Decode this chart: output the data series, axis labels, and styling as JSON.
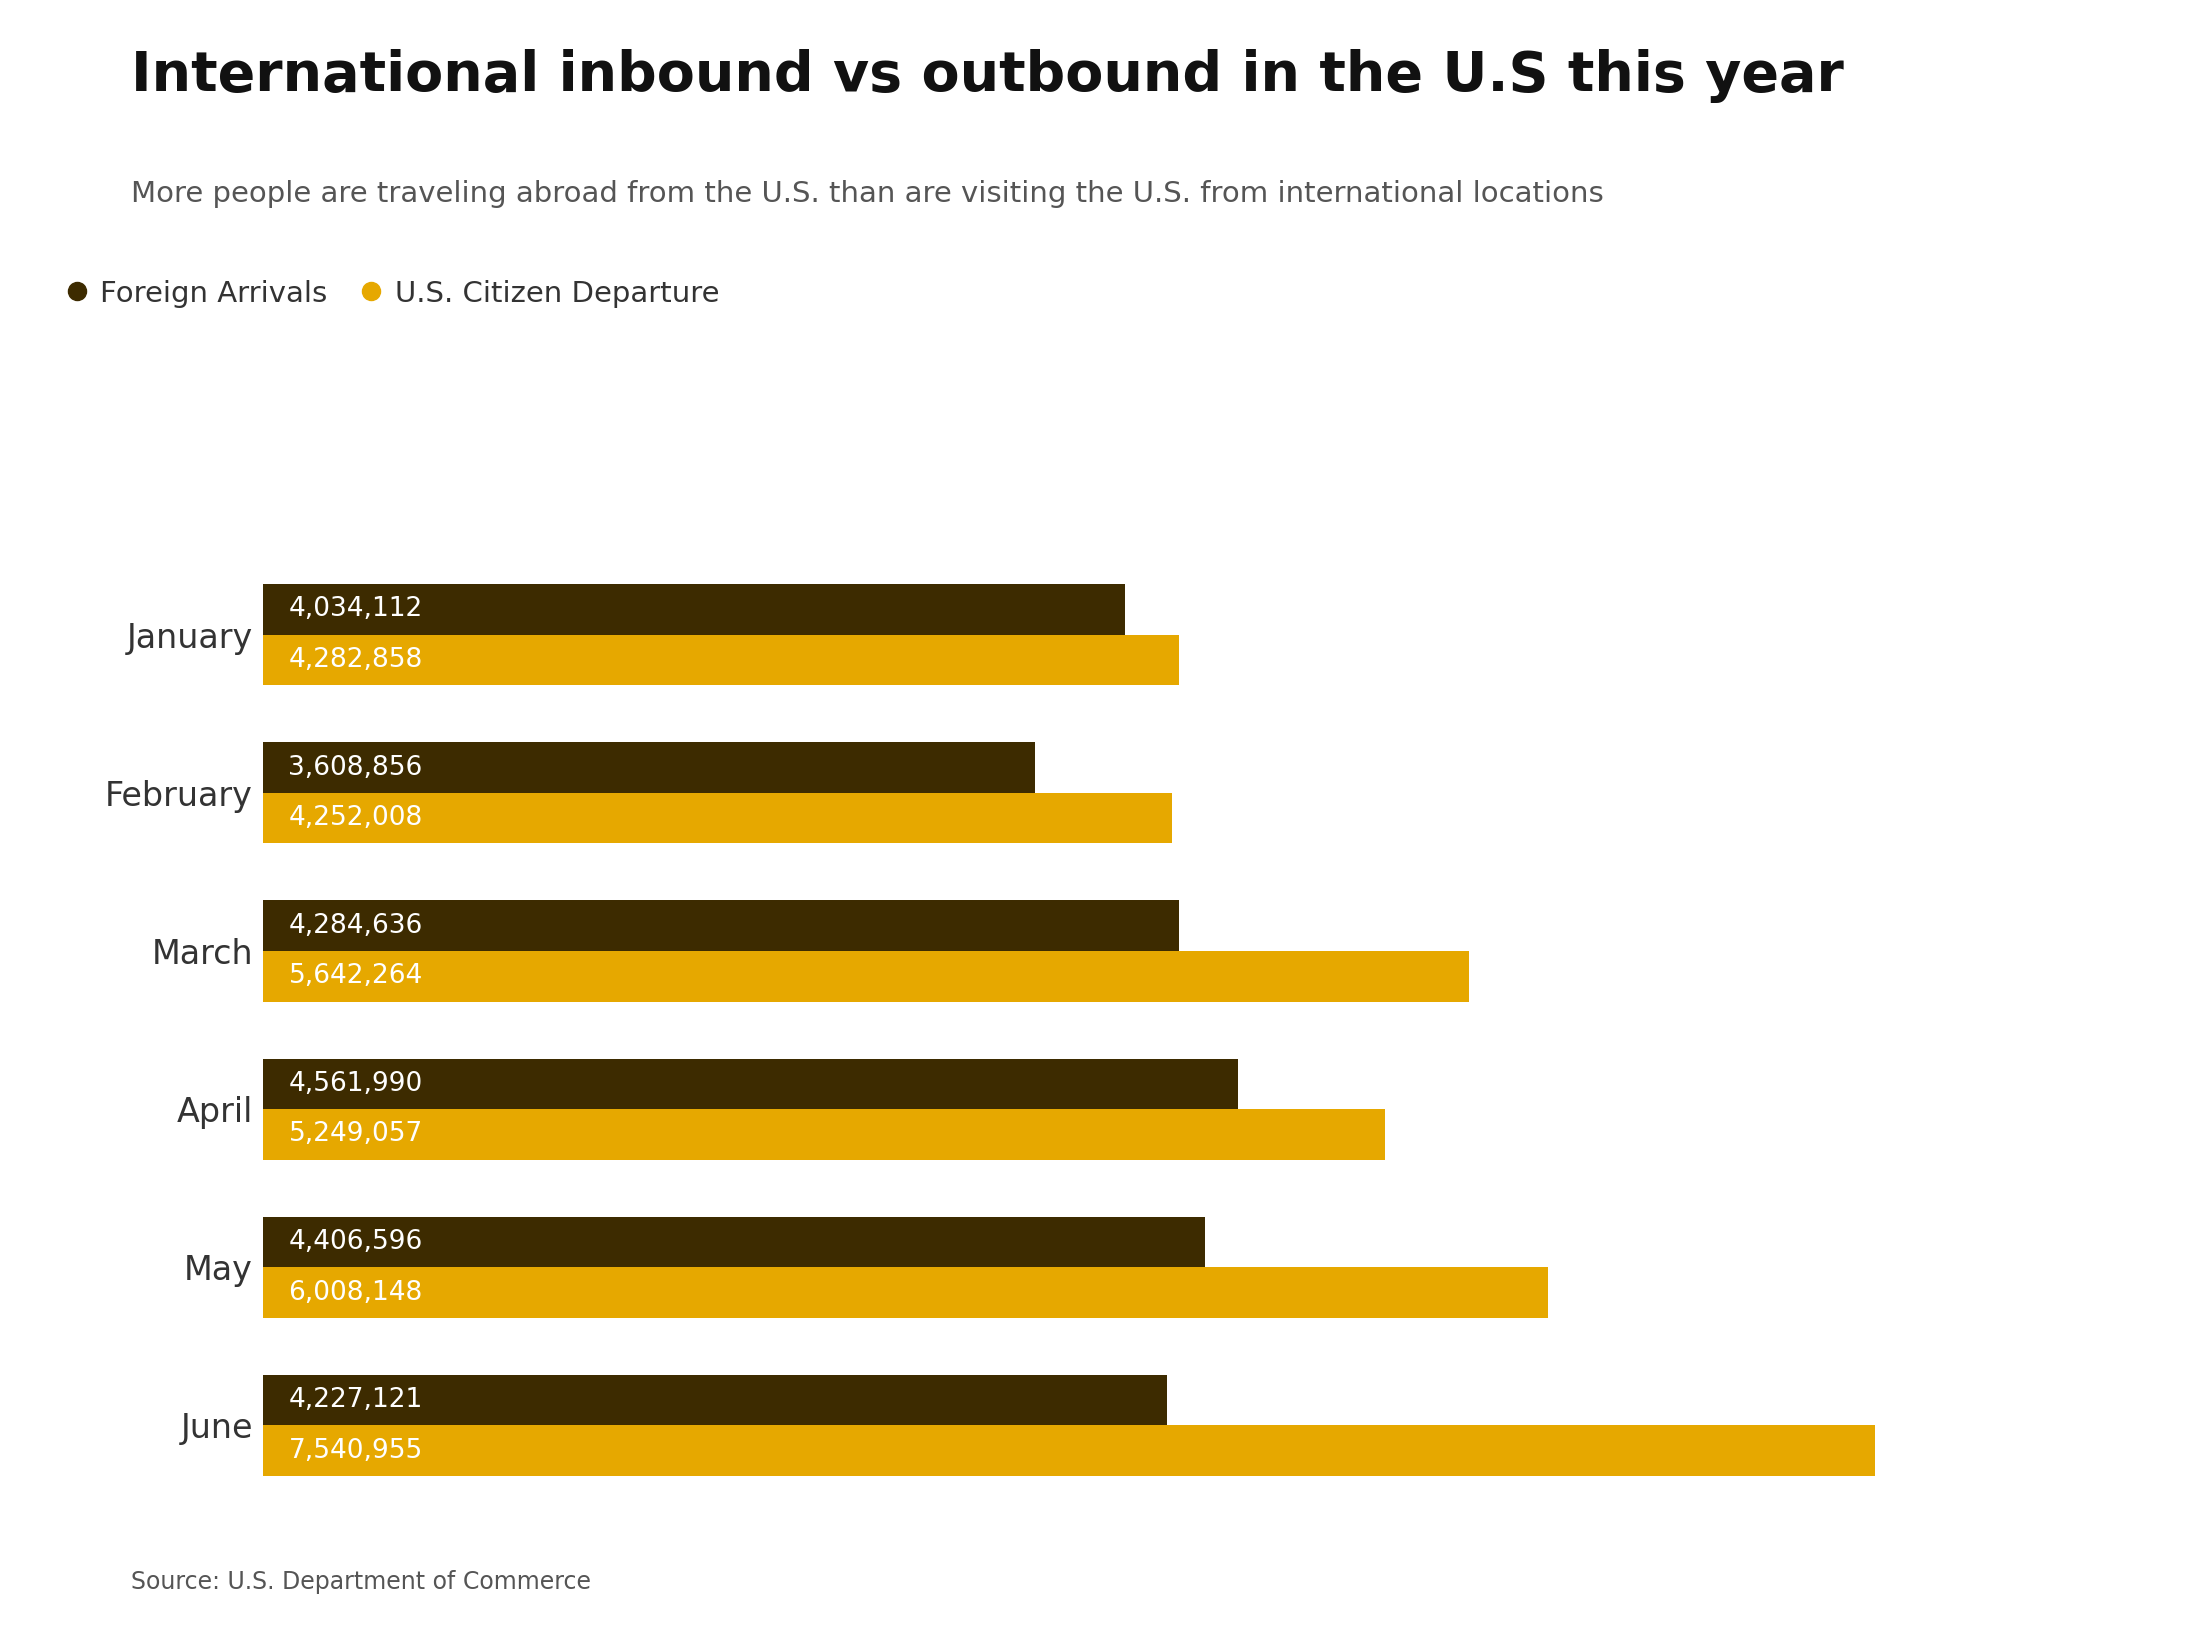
{
  "title": "International inbound vs outbound in the U.S this year",
  "subtitle": "More people are traveling abroad from the U.S. than are visiting the U.S. from international locations",
  "source": "Source: U.S. Department of Commerce",
  "legend": [
    "Foreign Arrivals",
    "U.S. Citizen Departure"
  ],
  "months": [
    "January",
    "February",
    "March",
    "April",
    "May",
    "June"
  ],
  "foreign_arrivals": [
    4034112,
    3608856,
    4284636,
    4561990,
    4406596,
    4227121
  ],
  "us_departures": [
    4282858,
    4252008,
    5642264,
    5249057,
    6008148,
    7540955
  ],
  "bar_color_arrivals": "#3d2b00",
  "bar_color_departures": "#e6a800",
  "label_color_arrivals": "#ffffff",
  "label_color_departures": "#ffffff",
  "background_color": "#ffffff",
  "title_fontsize": 40,
  "subtitle_fontsize": 21,
  "label_fontsize": 19,
  "axis_label_fontsize": 24,
  "legend_fontsize": 21,
  "source_fontsize": 17,
  "bar_height": 0.32,
  "xlim": [
    0,
    8500000
  ]
}
